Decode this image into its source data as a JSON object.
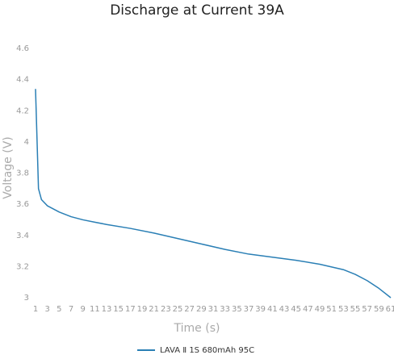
{
  "chart_data": {
    "type": "line",
    "title": "Discharge at Current 39A",
    "x_label": "Time (s)",
    "y_label": "Voltage (V)",
    "x": [
      1,
      1.5,
      2,
      3,
      5,
      7,
      9,
      11,
      13,
      17,
      21,
      25,
      29,
      33,
      37,
      41,
      45,
      49,
      53,
      55,
      57,
      59,
      61
    ],
    "series": [
      {
        "name": "LAVA Ⅱ 1S 680mAh 95C",
        "color": "#2a7fb5",
        "values": [
          4.34,
          3.7,
          3.63,
          3.59,
          3.55,
          3.52,
          3.5,
          3.485,
          3.47,
          3.445,
          3.415,
          3.38,
          3.345,
          3.31,
          3.28,
          3.26,
          3.24,
          3.215,
          3.18,
          3.15,
          3.11,
          3.06,
          3.0
        ]
      }
    ],
    "xlim": [
      1,
      61
    ],
    "xticks": [
      1,
      3,
      5,
      7,
      9,
      11,
      13,
      15,
      17,
      19,
      21,
      23,
      25,
      27,
      29,
      31,
      33,
      35,
      37,
      39,
      41,
      43,
      45,
      47,
      49,
      51,
      53,
      55,
      57,
      59,
      61
    ],
    "ylim": [
      3,
      4.6
    ],
    "yticks": [
      3,
      3.2,
      3.4,
      3.6,
      3.8,
      4,
      4.2,
      4.4,
      4.6
    ],
    "grid": false,
    "legend": "bottom"
  }
}
